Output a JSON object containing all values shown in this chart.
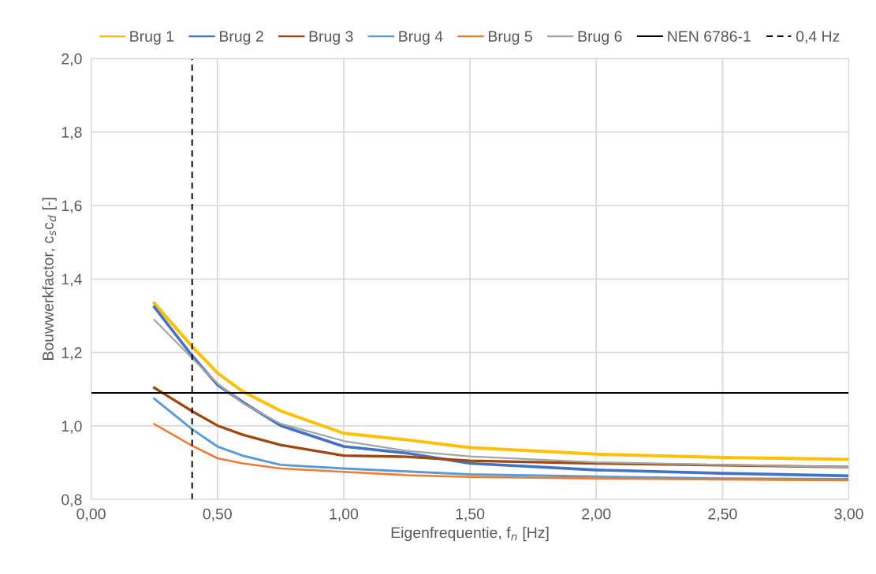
{
  "chart_data": {
    "type": "line",
    "xlabel": "Eigenfrequentie, f$_{n}$ [Hz]",
    "ylabel": "Bouwwerkfactor, c$_{s}$c$_{d}$ [-]",
    "x": [
      0.25,
      0.4,
      0.5,
      0.6,
      0.75,
      1.0,
      1.25,
      1.5,
      2.0,
      2.5,
      3.0
    ],
    "series": [
      {
        "name": "Brug 1",
        "color": "#ffc000",
        "values": [
          1.334,
          1.216,
          1.144,
          1.094,
          1.041,
          0.98,
          0.962,
          0.941,
          0.923,
          0.914,
          0.909
        ]
      },
      {
        "name": "Brug 2",
        "color": "#4472c4",
        "values": [
          1.324,
          1.191,
          1.112,
          1.065,
          1.001,
          0.944,
          0.926,
          0.898,
          0.88,
          0.871,
          0.864
        ]
      },
      {
        "name": "Brug 3",
        "color": "#9e480e",
        "values": [
          1.104,
          1.04,
          1.001,
          0.976,
          0.948,
          0.919,
          0.916,
          0.905,
          0.898,
          0.893,
          0.888
        ]
      },
      {
        "name": "Brug 4",
        "color": "#5b9bd5",
        "values": [
          1.074,
          0.991,
          0.944,
          0.919,
          0.894,
          0.884,
          0.876,
          0.868,
          0.862,
          0.857,
          0.855
        ]
      },
      {
        "name": "Brug 5",
        "color": "#ed7d31",
        "values": [
          1.005,
          0.946,
          0.912,
          0.898,
          0.884,
          0.875,
          0.866,
          0.861,
          0.857,
          0.854,
          0.852
        ]
      },
      {
        "name": "Brug 6",
        "color": "#a5a5a5",
        "values": [
          1.289,
          1.184,
          1.116,
          1.062,
          1.006,
          0.959,
          0.932,
          0.917,
          0.901,
          0.894,
          0.888
        ]
      }
    ],
    "ref_lines": [
      {
        "axis": "y",
        "value": 1.09,
        "label": "NEN 6786-1",
        "color": "#000000",
        "line_style": "solid"
      },
      {
        "axis": "x",
        "value": 0.4,
        "label": "0,4 Hz",
        "color": "#000000",
        "line_style": "dashed"
      }
    ],
    "xlim": [
      0,
      3
    ],
    "xticks": [
      {
        "value": 0,
        "label": "0,00"
      },
      {
        "value": 0.5,
        "label": "0,50"
      },
      {
        "value": 1,
        "label": "1,00"
      },
      {
        "value": 1.5,
        "label": "1,50"
      },
      {
        "value": 2,
        "label": "2,00"
      },
      {
        "value": 2.5,
        "label": "2,50"
      },
      {
        "value": 3,
        "label": "3,00"
      }
    ],
    "ylim": [
      0.8,
      2.0
    ],
    "yticks": [
      {
        "value": 0.8,
        "label": "0,8"
      },
      {
        "value": 1.0,
        "label": "1,0"
      },
      {
        "value": 1.2,
        "label": "1,2"
      },
      {
        "value": 1.4,
        "label": "1,4"
      },
      {
        "value": 1.6,
        "label": "1,6"
      },
      {
        "value": 1.8,
        "label": "1,8"
      },
      {
        "value": 2.0,
        "label": "2,0"
      }
    ],
    "grid": true,
    "legend": "top",
    "marker": "none",
    "line_style": "solid"
  }
}
